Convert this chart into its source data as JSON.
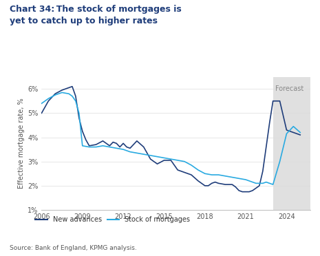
{
  "title": "Chart 34: The stock of mortgages is\nyet to catch up to higher rates",
  "title_color": "#1f3d7a",
  "ylabel": "Effective mortgage rate, %",
  "source": "Source: Bank of England, KPMG analysis.",
  "forecast_label": "Forecast",
  "forecast_start": 2023.0,
  "forecast_end": 2025.75,
  "xlim": [
    2006,
    2025.75
  ],
  "ylim": [
    1,
    6.5
  ],
  "yticks": [
    1,
    2,
    3,
    4,
    5,
    6
  ],
  "xticks": [
    2006,
    2009,
    2012,
    2015,
    2018,
    2021,
    2024
  ],
  "new_advances_color": "#1f3d7a",
  "stock_color": "#29aae1",
  "new_advances_x": [
    2006.0,
    2006.5,
    2007.0,
    2007.5,
    2008.0,
    2008.25,
    2008.5,
    2008.75,
    2009.0,
    2009.25,
    2009.5,
    2010.0,
    2010.5,
    2011.0,
    2011.25,
    2011.5,
    2011.75,
    2012.0,
    2012.25,
    2012.5,
    2012.75,
    2013.0,
    2013.5,
    2014.0,
    2014.5,
    2015.0,
    2015.25,
    2015.5,
    2016.0,
    2016.5,
    2017.0,
    2017.5,
    2018.0,
    2018.25,
    2018.5,
    2018.75,
    2019.0,
    2019.5,
    2020.0,
    2020.25,
    2020.5,
    2020.75,
    2021.0,
    2021.25,
    2021.5,
    2021.75,
    2022.0,
    2022.25,
    2022.5,
    2022.75,
    2023.0,
    2023.5,
    2024.0,
    2024.5,
    2025.0
  ],
  "new_advances_y": [
    5.0,
    5.5,
    5.8,
    5.95,
    6.05,
    6.1,
    5.7,
    4.8,
    4.25,
    3.9,
    3.65,
    3.7,
    3.85,
    3.65,
    3.8,
    3.75,
    3.6,
    3.75,
    3.6,
    3.55,
    3.7,
    3.85,
    3.6,
    3.1,
    2.9,
    3.05,
    3.05,
    3.05,
    2.65,
    2.55,
    2.45,
    2.2,
    2.0,
    2.0,
    2.1,
    2.15,
    2.1,
    2.05,
    2.05,
    1.95,
    1.8,
    1.75,
    1.75,
    1.75,
    1.8,
    1.9,
    2.0,
    2.6,
    3.6,
    4.6,
    5.5,
    5.5,
    4.3,
    4.2,
    4.1
  ],
  "stock_x": [
    2006.0,
    2006.5,
    2007.0,
    2007.5,
    2008.0,
    2008.25,
    2008.5,
    2008.75,
    2009.0,
    2009.5,
    2010.0,
    2010.5,
    2011.0,
    2011.5,
    2012.0,
    2012.5,
    2013.0,
    2013.5,
    2014.0,
    2014.5,
    2015.0,
    2015.5,
    2016.0,
    2016.5,
    2017.0,
    2017.5,
    2018.0,
    2018.5,
    2019.0,
    2019.5,
    2020.0,
    2020.5,
    2021.0,
    2021.25,
    2021.5,
    2021.75,
    2022.0,
    2022.25,
    2022.5,
    2022.75,
    2023.0,
    2023.5,
    2024.0,
    2024.5,
    2025.0
  ],
  "stock_y": [
    5.4,
    5.6,
    5.75,
    5.85,
    5.8,
    5.7,
    5.5,
    5.0,
    3.65,
    3.6,
    3.6,
    3.65,
    3.6,
    3.55,
    3.5,
    3.4,
    3.35,
    3.3,
    3.25,
    3.2,
    3.15,
    3.1,
    3.05,
    3.0,
    2.85,
    2.65,
    2.5,
    2.45,
    2.45,
    2.4,
    2.35,
    2.3,
    2.25,
    2.2,
    2.15,
    2.1,
    2.1,
    2.1,
    2.15,
    2.1,
    2.05,
    3.0,
    4.15,
    4.45,
    4.2
  ]
}
